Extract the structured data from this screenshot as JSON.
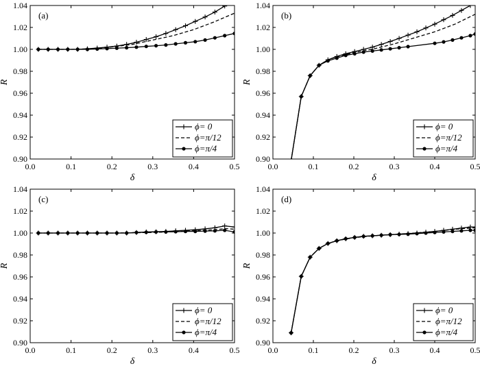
{
  "chart_data": [
    {
      "panel": "(a)",
      "type": "line",
      "xlabel": "δ",
      "ylabel": "R",
      "xlim": [
        0.0,
        0.5
      ],
      "ylim": [
        0.9,
        1.04
      ],
      "xticks": [
        "0.0",
        "0.1",
        "0.2",
        "0.3",
        "0.4",
        "0.5"
      ],
      "yticks": [
        "0.90",
        "0.92",
        "0.94",
        "0.96",
        "0.98",
        "1.00",
        "1.02",
        "1.04"
      ],
      "legend_position": "bottom-right",
      "series": [
        {
          "name": "ϕ= 0",
          "style": "plus",
          "x": [
            0.02,
            0.044,
            0.068,
            0.092,
            0.116,
            0.14,
            0.164,
            0.188,
            0.212,
            0.236,
            0.26,
            0.284,
            0.308,
            0.332,
            0.356,
            0.38,
            0.404,
            0.428,
            0.452,
            0.476
          ],
          "y": [
            1.0,
            1.0,
            1.0,
            1.0,
            1.0,
            1.0005,
            1.0012,
            1.002,
            1.003,
            1.0045,
            1.0065,
            1.009,
            1.0115,
            1.0145,
            1.018,
            1.0215,
            1.0255,
            1.0295,
            1.034,
            1.0395
          ]
        },
        {
          "name": "ϕ=π/12",
          "style": "dashed",
          "x": [
            0.02,
            0.1,
            0.15,
            0.2,
            0.25,
            0.3,
            0.35,
            0.4,
            0.45,
            0.5
          ],
          "y": [
            1.0,
            1.0,
            1.0005,
            1.0022,
            1.0045,
            1.0085,
            1.0125,
            1.018,
            1.025,
            1.033
          ]
        },
        {
          "name": "ϕ=π/4",
          "style": "dot",
          "x": [
            0.02,
            0.044,
            0.068,
            0.092,
            0.116,
            0.14,
            0.164,
            0.188,
            0.212,
            0.236,
            0.26,
            0.284,
            0.308,
            0.332,
            0.356,
            0.38,
            0.404,
            0.428,
            0.452,
            0.476,
            0.5
          ],
          "y": [
            1.0,
            1.0,
            1.0,
            1.0,
            1.0,
            1.0,
            1.0003,
            1.0007,
            1.0011,
            1.0015,
            1.002,
            1.0027,
            1.0033,
            1.004,
            1.005,
            1.006,
            1.007,
            1.0085,
            1.0105,
            1.0125,
            1.0145
          ]
        }
      ]
    },
    {
      "panel": "(b)",
      "type": "line",
      "xlabel": "δ",
      "ylabel": "R",
      "xlim": [
        0.0,
        0.5
      ],
      "ylim": [
        0.9,
        1.04
      ],
      "xticks": [
        "0.0",
        "0.1",
        "0.2",
        "0.3",
        "0.4",
        "0.5"
      ],
      "yticks": [
        "0.90",
        "0.92",
        "0.94",
        "0.96",
        "0.98",
        "1.00",
        "1.02",
        "1.04"
      ],
      "legend_position": "bottom-right",
      "series": [
        {
          "name": "ϕ= 0",
          "style": "plus",
          "x": [
            0.045,
            0.07,
            0.092,
            0.114,
            0.136,
            0.158,
            0.18,
            0.202,
            0.224,
            0.246,
            0.268,
            0.29,
            0.312,
            0.334,
            0.356,
            0.378,
            0.4,
            0.422,
            0.444,
            0.466,
            0.488
          ],
          "y": [
            0.8985,
            0.957,
            0.976,
            0.9855,
            0.9905,
            0.9935,
            0.996,
            0.998,
            1.0,
            1.002,
            1.0045,
            1.0072,
            1.01,
            1.013,
            1.016,
            1.0195,
            1.023,
            1.027,
            1.031,
            1.0355,
            1.04
          ]
        },
        {
          "name": "ϕ=π/12",
          "style": "dashed",
          "x": [
            0.045,
            0.07,
            0.092,
            0.114,
            0.136,
            0.16,
            0.2,
            0.25,
            0.3,
            0.35,
            0.4,
            0.45,
            0.5
          ],
          "y": [
            0.8985,
            0.957,
            0.976,
            0.9855,
            0.9905,
            0.9935,
            0.997,
            1.0005,
            1.005,
            1.0105,
            1.016,
            1.023,
            1.032
          ]
        },
        {
          "name": "ϕ=π/4",
          "style": "dot",
          "x": [
            0.045,
            0.07,
            0.092,
            0.114,
            0.136,
            0.158,
            0.18,
            0.202,
            0.224,
            0.246,
            0.268,
            0.29,
            0.312,
            0.334,
            0.4,
            0.422,
            0.444,
            0.466,
            0.488,
            0.5
          ],
          "y": [
            0.8985,
            0.957,
            0.976,
            0.9855,
            0.9895,
            0.992,
            0.9945,
            0.996,
            0.9975,
            0.9985,
            0.9995,
            1.0005,
            1.0015,
            1.0025,
            1.0055,
            1.0068,
            1.0085,
            1.0105,
            1.0125,
            1.014
          ]
        }
      ]
    },
    {
      "panel": "(c)",
      "type": "line",
      "xlabel": "δ",
      "ylabel": "R",
      "xlim": [
        0.0,
        0.5
      ],
      "ylim": [
        0.9,
        1.04
      ],
      "xticks": [
        "0.0",
        "0.1",
        "0.2",
        "0.3",
        "0.4",
        "0.5"
      ],
      "yticks": [
        "0.90",
        "0.92",
        "0.94",
        "0.96",
        "0.98",
        "1.00",
        "1.02",
        "1.04"
      ],
      "legend_position": "bottom-right",
      "series": [
        {
          "name": "ϕ= 0",
          "style": "plus",
          "x": [
            0.02,
            0.044,
            0.068,
            0.092,
            0.116,
            0.14,
            0.164,
            0.188,
            0.212,
            0.236,
            0.26,
            0.284,
            0.308,
            0.332,
            0.356,
            0.38,
            0.404,
            0.428,
            0.452,
            0.476,
            0.5
          ],
          "y": [
            1.0,
            1.0,
            1.0,
            1.0,
            1.0,
            1.0,
            1.0,
            1.0,
            1.0,
            1.0,
            1.0005,
            1.001,
            1.0012,
            1.0015,
            1.002,
            1.0025,
            1.003,
            1.0038,
            1.0048,
            1.0065,
            1.0055
          ]
        },
        {
          "name": "ϕ=π/12",
          "style": "dashed",
          "x": [
            0.02,
            0.1,
            0.2,
            0.3,
            0.35,
            0.4,
            0.45,
            0.48,
            0.5
          ],
          "y": [
            1.0,
            1.0,
            1.0,
            1.0005,
            1.0012,
            1.002,
            1.003,
            1.004,
            1.0035
          ]
        },
        {
          "name": "ϕ=π/4",
          "style": "dot",
          "x": [
            0.02,
            0.044,
            0.068,
            0.092,
            0.116,
            0.14,
            0.164,
            0.188,
            0.212,
            0.236,
            0.26,
            0.284,
            0.308,
            0.332,
            0.356,
            0.38,
            0.404,
            0.428,
            0.452,
            0.476,
            0.5
          ],
          "y": [
            1.0,
            1.0,
            1.0,
            1.0,
            1.0,
            1.0,
            1.0,
            1.0,
            1.0,
            1.0,
            1.0005,
            1.0007,
            1.001,
            1.001,
            1.0012,
            1.0015,
            1.0015,
            1.0018,
            1.002,
            1.0025,
            1.001
          ]
        }
      ]
    },
    {
      "panel": "(d)",
      "type": "line",
      "xlabel": "δ",
      "ylabel": "R",
      "xlim": [
        0.0,
        0.5
      ],
      "ylim": [
        0.9,
        1.04
      ],
      "xticks": [
        "0.0",
        "0.1",
        "0.2",
        "0.3",
        "0.4",
        "0.5"
      ],
      "yticks": [
        "0.90",
        "0.92",
        "0.94",
        "0.96",
        "0.98",
        "1.00",
        "1.02",
        "1.04"
      ],
      "legend_position": "bottom-right",
      "series": [
        {
          "name": "ϕ= 0",
          "style": "plus",
          "x": [
            0.045,
            0.07,
            0.092,
            0.114,
            0.136,
            0.158,
            0.18,
            0.202,
            0.224,
            0.246,
            0.268,
            0.29,
            0.312,
            0.334,
            0.356,
            0.378,
            0.4,
            0.422,
            0.444,
            0.466,
            0.488,
            0.5
          ],
          "y": [
            0.909,
            0.9605,
            0.978,
            0.986,
            0.9905,
            0.993,
            0.9948,
            0.996,
            0.997,
            0.9975,
            0.998,
            0.9985,
            0.999,
            0.9995,
            1.0,
            1.0008,
            1.0015,
            1.0025,
            1.0035,
            1.0045,
            1.0055,
            1.0055
          ]
        },
        {
          "name": "ϕ=π/12",
          "style": "dashed",
          "x": [
            0.045,
            0.07,
            0.092,
            0.114,
            0.136,
            0.158,
            0.2,
            0.25,
            0.3,
            0.35,
            0.4,
            0.45,
            0.5
          ],
          "y": [
            0.909,
            0.9605,
            0.978,
            0.986,
            0.9905,
            0.993,
            0.9958,
            0.9975,
            0.9988,
            1.0,
            1.0015,
            1.0035,
            1.0048
          ]
        },
        {
          "name": "ϕ=π/4",
          "style": "dot",
          "x": [
            0.045,
            0.07,
            0.092,
            0.114,
            0.136,
            0.158,
            0.18,
            0.202,
            0.224,
            0.246,
            0.268,
            0.29,
            0.312,
            0.334,
            0.356,
            0.378,
            0.4,
            0.422,
            0.444,
            0.466,
            0.488,
            0.5
          ],
          "y": [
            0.909,
            0.9605,
            0.978,
            0.986,
            0.9905,
            0.993,
            0.9948,
            0.996,
            0.997,
            0.9975,
            0.998,
            0.9985,
            0.9988,
            0.999,
            0.9995,
            1.0,
            1.0005,
            1.001,
            1.0015,
            1.002,
            1.0025,
            1.0025
          ]
        }
      ]
    }
  ]
}
